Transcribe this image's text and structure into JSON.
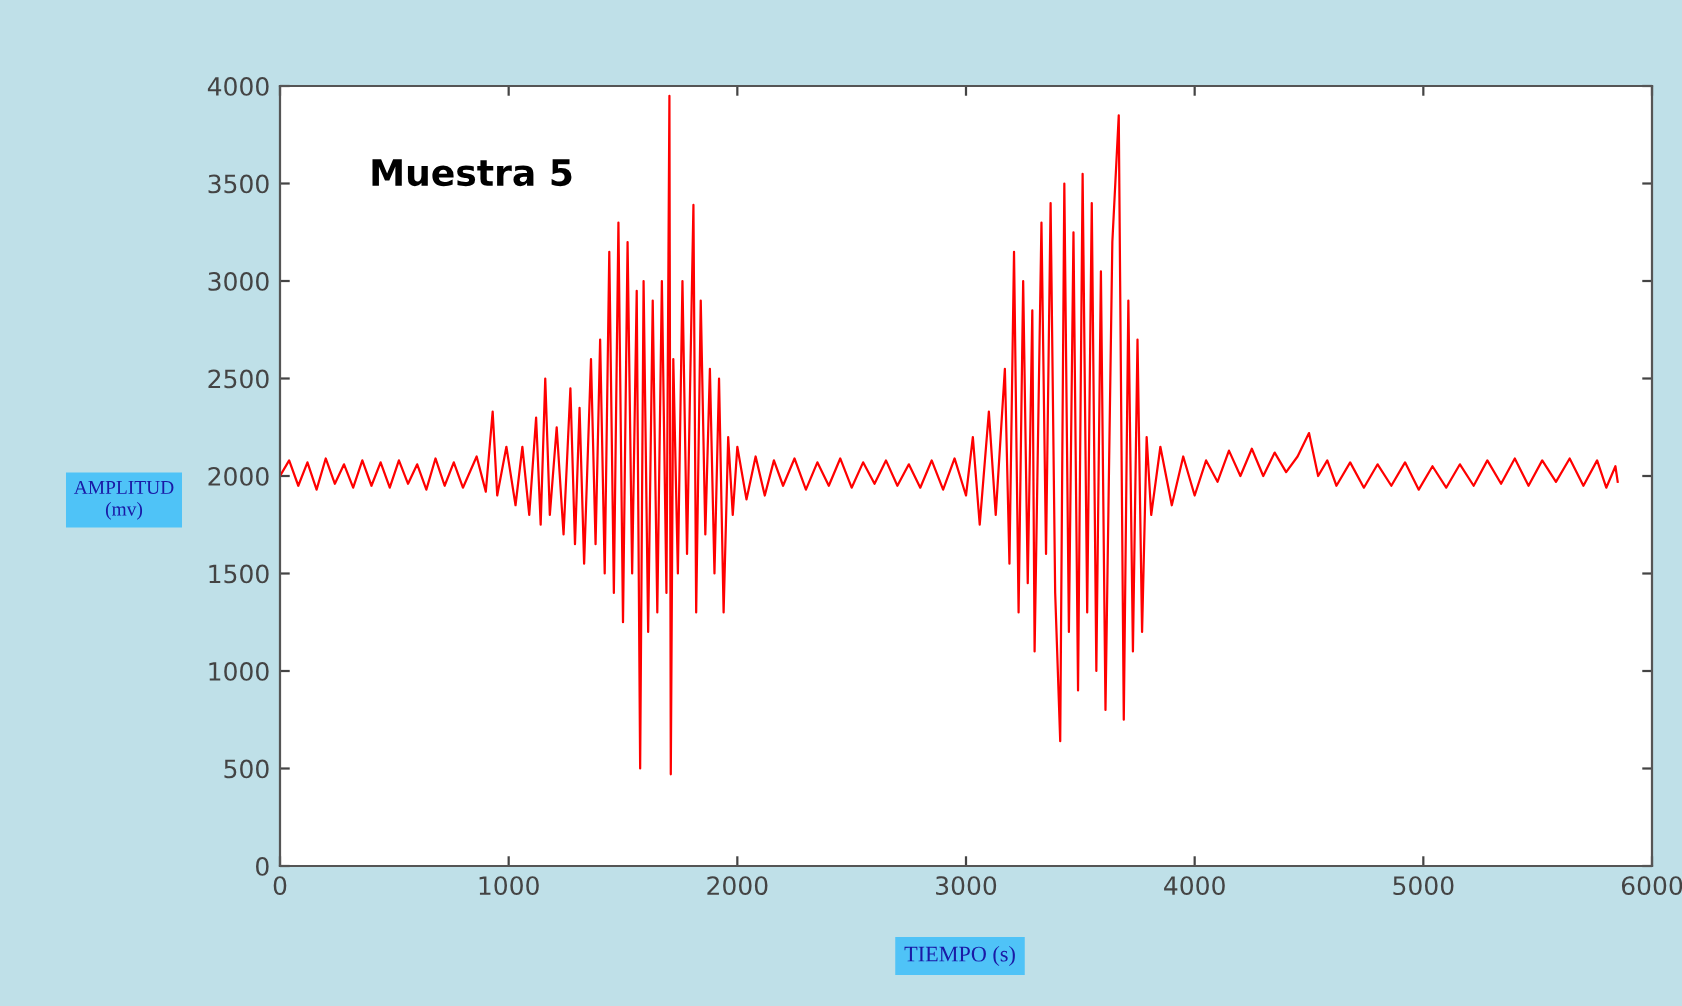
{
  "chart_data": {
    "type": "line",
    "annotations": [
      "Muestra 5"
    ],
    "xlabel": "TIEMPO (s)",
    "ylabel": "AMPLITUD\n(mv)",
    "xlim": [
      0,
      6000
    ],
    "xticks": [
      0,
      1000,
      2000,
      3000,
      4000,
      5000,
      6000
    ],
    "ylim": [
      0,
      4000
    ],
    "yticks": [
      0,
      500,
      1000,
      1500,
      2000,
      2500,
      3000,
      3500,
      4000
    ],
    "grid": false,
    "marker": "none",
    "line_style": "solid",
    "series": [
      {
        "color": "#ff0000",
        "x": [
          0,
          40,
          80,
          120,
          160,
          200,
          240,
          280,
          320,
          360,
          400,
          440,
          480,
          520,
          560,
          600,
          640,
          680,
          720,
          760,
          800,
          860,
          900,
          930,
          950,
          990,
          1030,
          1060,
          1090,
          1120,
          1140,
          1160,
          1180,
          1210,
          1240,
          1270,
          1290,
          1310,
          1330,
          1360,
          1380,
          1400,
          1420,
          1440,
          1460,
          1480,
          1500,
          1520,
          1540,
          1560,
          1575,
          1590,
          1610,
          1630,
          1650,
          1670,
          1690,
          1703,
          1709,
          1720,
          1740,
          1760,
          1780,
          1808,
          1820,
          1840,
          1860,
          1880,
          1900,
          1920,
          1940,
          1960,
          1980,
          2000,
          2040,
          2080,
          2120,
          2160,
          2200,
          2250,
          2300,
          2350,
          2400,
          2450,
          2500,
          2550,
          2600,
          2650,
          2700,
          2750,
          2800,
          2850,
          2900,
          2950,
          3000,
          3030,
          3060,
          3100,
          3130,
          3170,
          3190,
          3210,
          3230,
          3250,
          3270,
          3290,
          3300,
          3330,
          3350,
          3370,
          3390,
          3412,
          3430,
          3450,
          3470,
          3490,
          3510,
          3530,
          3550,
          3570,
          3590,
          3610,
          3640,
          3668,
          3690,
          3710,
          3730,
          3750,
          3770,
          3790,
          3810,
          3850,
          3900,
          3950,
          4000,
          4050,
          4100,
          4150,
          4200,
          4250,
          4300,
          4350,
          4400,
          4450,
          4500,
          4540,
          4580,
          4620,
          4680,
          4740,
          4800,
          4860,
          4920,
          4980,
          5040,
          5100,
          5160,
          5220,
          5280,
          5340,
          5400,
          5460,
          5520,
          5580,
          5640,
          5700,
          5760,
          5800,
          5840,
          5850
        ],
        "values": [
          2000,
          2080,
          1950,
          2070,
          1930,
          2090,
          1960,
          2060,
          1940,
          2080,
          1950,
          2070,
          1940,
          2080,
          1960,
          2060,
          1930,
          2090,
          1950,
          2070,
          1940,
          2100,
          1920,
          2330,
          1900,
          2150,
          1850,
          2150,
          1800,
          2300,
          1750,
          2500,
          1800,
          2250,
          1700,
          2450,
          1650,
          2350,
          1550,
          2600,
          1650,
          2700,
          1500,
          3150,
          1400,
          3300,
          1250,
          3200,
          1500,
          2950,
          500,
          3000,
          1200,
          2900,
          1300,
          3000,
          1400,
          3950,
          470,
          2600,
          1500,
          3000,
          1600,
          3390,
          1300,
          2900,
          1700,
          2550,
          1500,
          2500,
          1300,
          2200,
          1800,
          2150,
          1880,
          2100,
          1900,
          2080,
          1950,
          2090,
          1930,
          2070,
          1950,
          2090,
          1940,
          2070,
          1960,
          2080,
          1950,
          2060,
          1940,
          2080,
          1930,
          2090,
          1900,
          2200,
          1750,
          2330,
          1800,
          2550,
          1550,
          3150,
          1300,
          3000,
          1450,
          2850,
          1100,
          3300,
          1600,
          3400,
          1400,
          640,
          3500,
          1200,
          3250,
          900,
          3550,
          1300,
          3400,
          1000,
          3050,
          800,
          3200,
          3850,
          750,
          2900,
          1100,
          2700,
          1200,
          2200,
          1800,
          2150,
          1850,
          2100,
          1900,
          2080,
          1970,
          2130,
          2000,
          2140,
          2000,
          2120,
          2020,
          2100,
          2220,
          2000,
          2080,
          1950,
          2070,
          1940,
          2060,
          1950,
          2070,
          1930,
          2050,
          1940,
          2060,
          1950,
          2080,
          1960,
          2090,
          1950,
          2080,
          1970,
          2090,
          1950,
          2080,
          1940,
          2050,
          1970
        ]
      }
    ]
  }
}
